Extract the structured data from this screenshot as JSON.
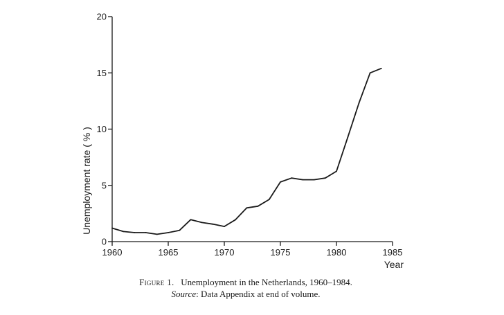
{
  "chart_data": {
    "type": "line",
    "title": "",
    "xlabel": "Year",
    "ylabel": "Unemployment rate ( % )",
    "xlim": [
      1960,
      1985
    ],
    "ylim": [
      0,
      20
    ],
    "x_ticks": [
      1960,
      1965,
      1970,
      1975,
      1980,
      1985
    ],
    "y_ticks": [
      0,
      5,
      10,
      15,
      20
    ],
    "grid": false,
    "series": [
      {
        "x": [
          1960,
          1961,
          1962,
          1963,
          1964,
          1965,
          1966,
          1967,
          1968,
          1969,
          1970,
          1971,
          1972,
          1973,
          1974,
          1975,
          1976,
          1977,
          1978,
          1979,
          1980,
          1981,
          1982,
          1983,
          1984
        ],
        "y": [
          1.2,
          0.9,
          0.8,
          0.8,
          0.65,
          0.8,
          1.0,
          1.95,
          1.7,
          1.55,
          1.35,
          1.95,
          3.0,
          3.15,
          3.75,
          5.3,
          5.65,
          5.5,
          5.5,
          5.65,
          6.25,
          9.25,
          12.3,
          15.0,
          15.4
        ]
      }
    ]
  },
  "caption": {
    "figure_label": "Figure 1.",
    "figure_text": "Unemployment in the Netherlands, 1960–1984.",
    "source_label": "Source",
    "source_text": ": Data Appendix at end of volume."
  }
}
